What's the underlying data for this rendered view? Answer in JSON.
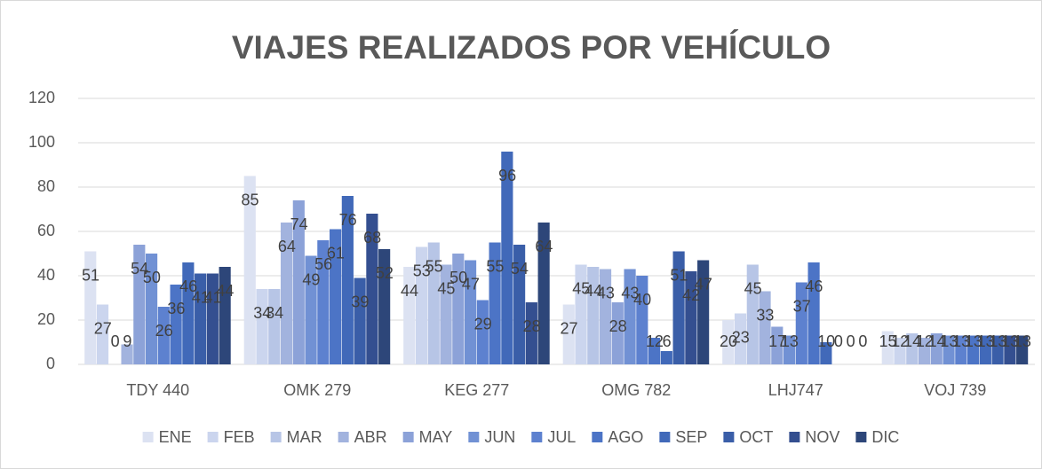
{
  "chart_data": {
    "type": "bar",
    "title": "VIAJES REALIZADOS POR VEHÍCULO",
    "categories": [
      "TDY 440",
      "OMK 279",
      "KEG 277",
      "OMG 782",
      "LHJ747",
      "VOJ 739"
    ],
    "series": [
      {
        "name": "ENE",
        "color": "#dce2f2",
        "values": [
          51,
          85,
          44,
          27,
          20,
          15
        ]
      },
      {
        "name": "FEB",
        "color": "#cbd5ee",
        "values": [
          27,
          34,
          53,
          45,
          23,
          12
        ]
      },
      {
        "name": "MAR",
        "color": "#b7c5e6",
        "values": [
          0,
          34,
          55,
          44,
          45,
          14
        ]
      },
      {
        "name": "ABR",
        "color": "#a2b3de",
        "values": [
          9,
          64,
          45,
          43,
          33,
          12
        ]
      },
      {
        "name": "MAY",
        "color": "#8ca2d8",
        "values": [
          54,
          74,
          50,
          28,
          17,
          14
        ]
      },
      {
        "name": "JUN",
        "color": "#7191d4",
        "values": [
          50,
          49,
          47,
          43,
          13,
          13
        ]
      },
      {
        "name": "JUL",
        "color": "#5d81cf",
        "values": [
          26,
          56,
          29,
          40,
          37,
          13
        ]
      },
      {
        "name": "AGO",
        "color": "#4c74c6",
        "values": [
          36,
          61,
          55,
          12,
          46,
          13
        ]
      },
      {
        "name": "SEP",
        "color": "#4169b9",
        "values": [
          46,
          76,
          96,
          6,
          10,
          13
        ]
      },
      {
        "name": "OCT",
        "color": "#3a5ea8",
        "values": [
          41,
          39,
          54,
          51,
          0,
          13
        ]
      },
      {
        "name": "NOV",
        "color": "#344f90",
        "values": [
          41,
          68,
          28,
          42,
          0,
          13
        ]
      },
      {
        "name": "DIC",
        "color": "#2d4679",
        "values": [
          44,
          52,
          64,
          47,
          0,
          13
        ]
      }
    ],
    "ylim": [
      0,
      120
    ],
    "yticks": [
      0,
      20,
      40,
      60,
      80,
      100,
      120
    ],
    "grid": true,
    "legend": "bottom"
  }
}
